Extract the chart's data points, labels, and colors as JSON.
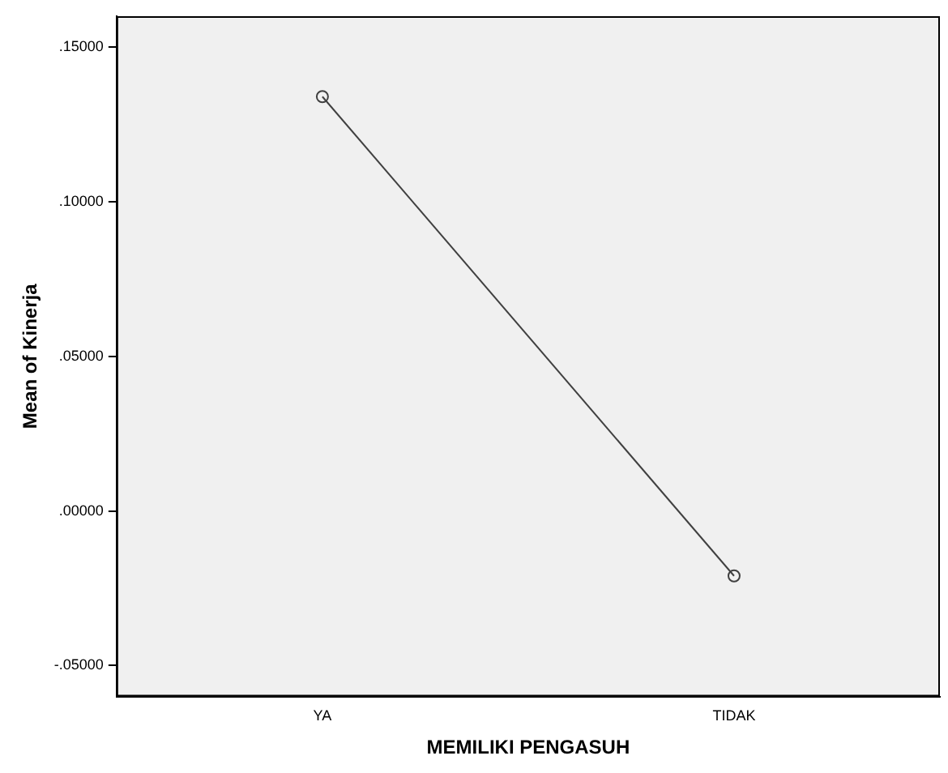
{
  "chart_data": {
    "type": "line",
    "xlabel": "MEMILIKI PENGASUH",
    "ylabel": "Mean of Kinerja",
    "categories": [
      "YA",
      "TIDAK"
    ],
    "series": [
      {
        "color": "#404040",
        "values": [
          0.134,
          -0.021
        ]
      }
    ],
    "ylim": [
      -0.06,
      0.16
    ],
    "yticks": [
      {
        "value": -0.05,
        "label": "-.05000"
      },
      {
        "value": 0,
        "label": ".00000"
      },
      {
        "value": 0.05,
        "label": ".05000"
      },
      {
        "value": 0.1,
        "label": ".10000"
      },
      {
        "value": 0.15,
        "label": ".15000"
      }
    ],
    "marker": "circle"
  }
}
